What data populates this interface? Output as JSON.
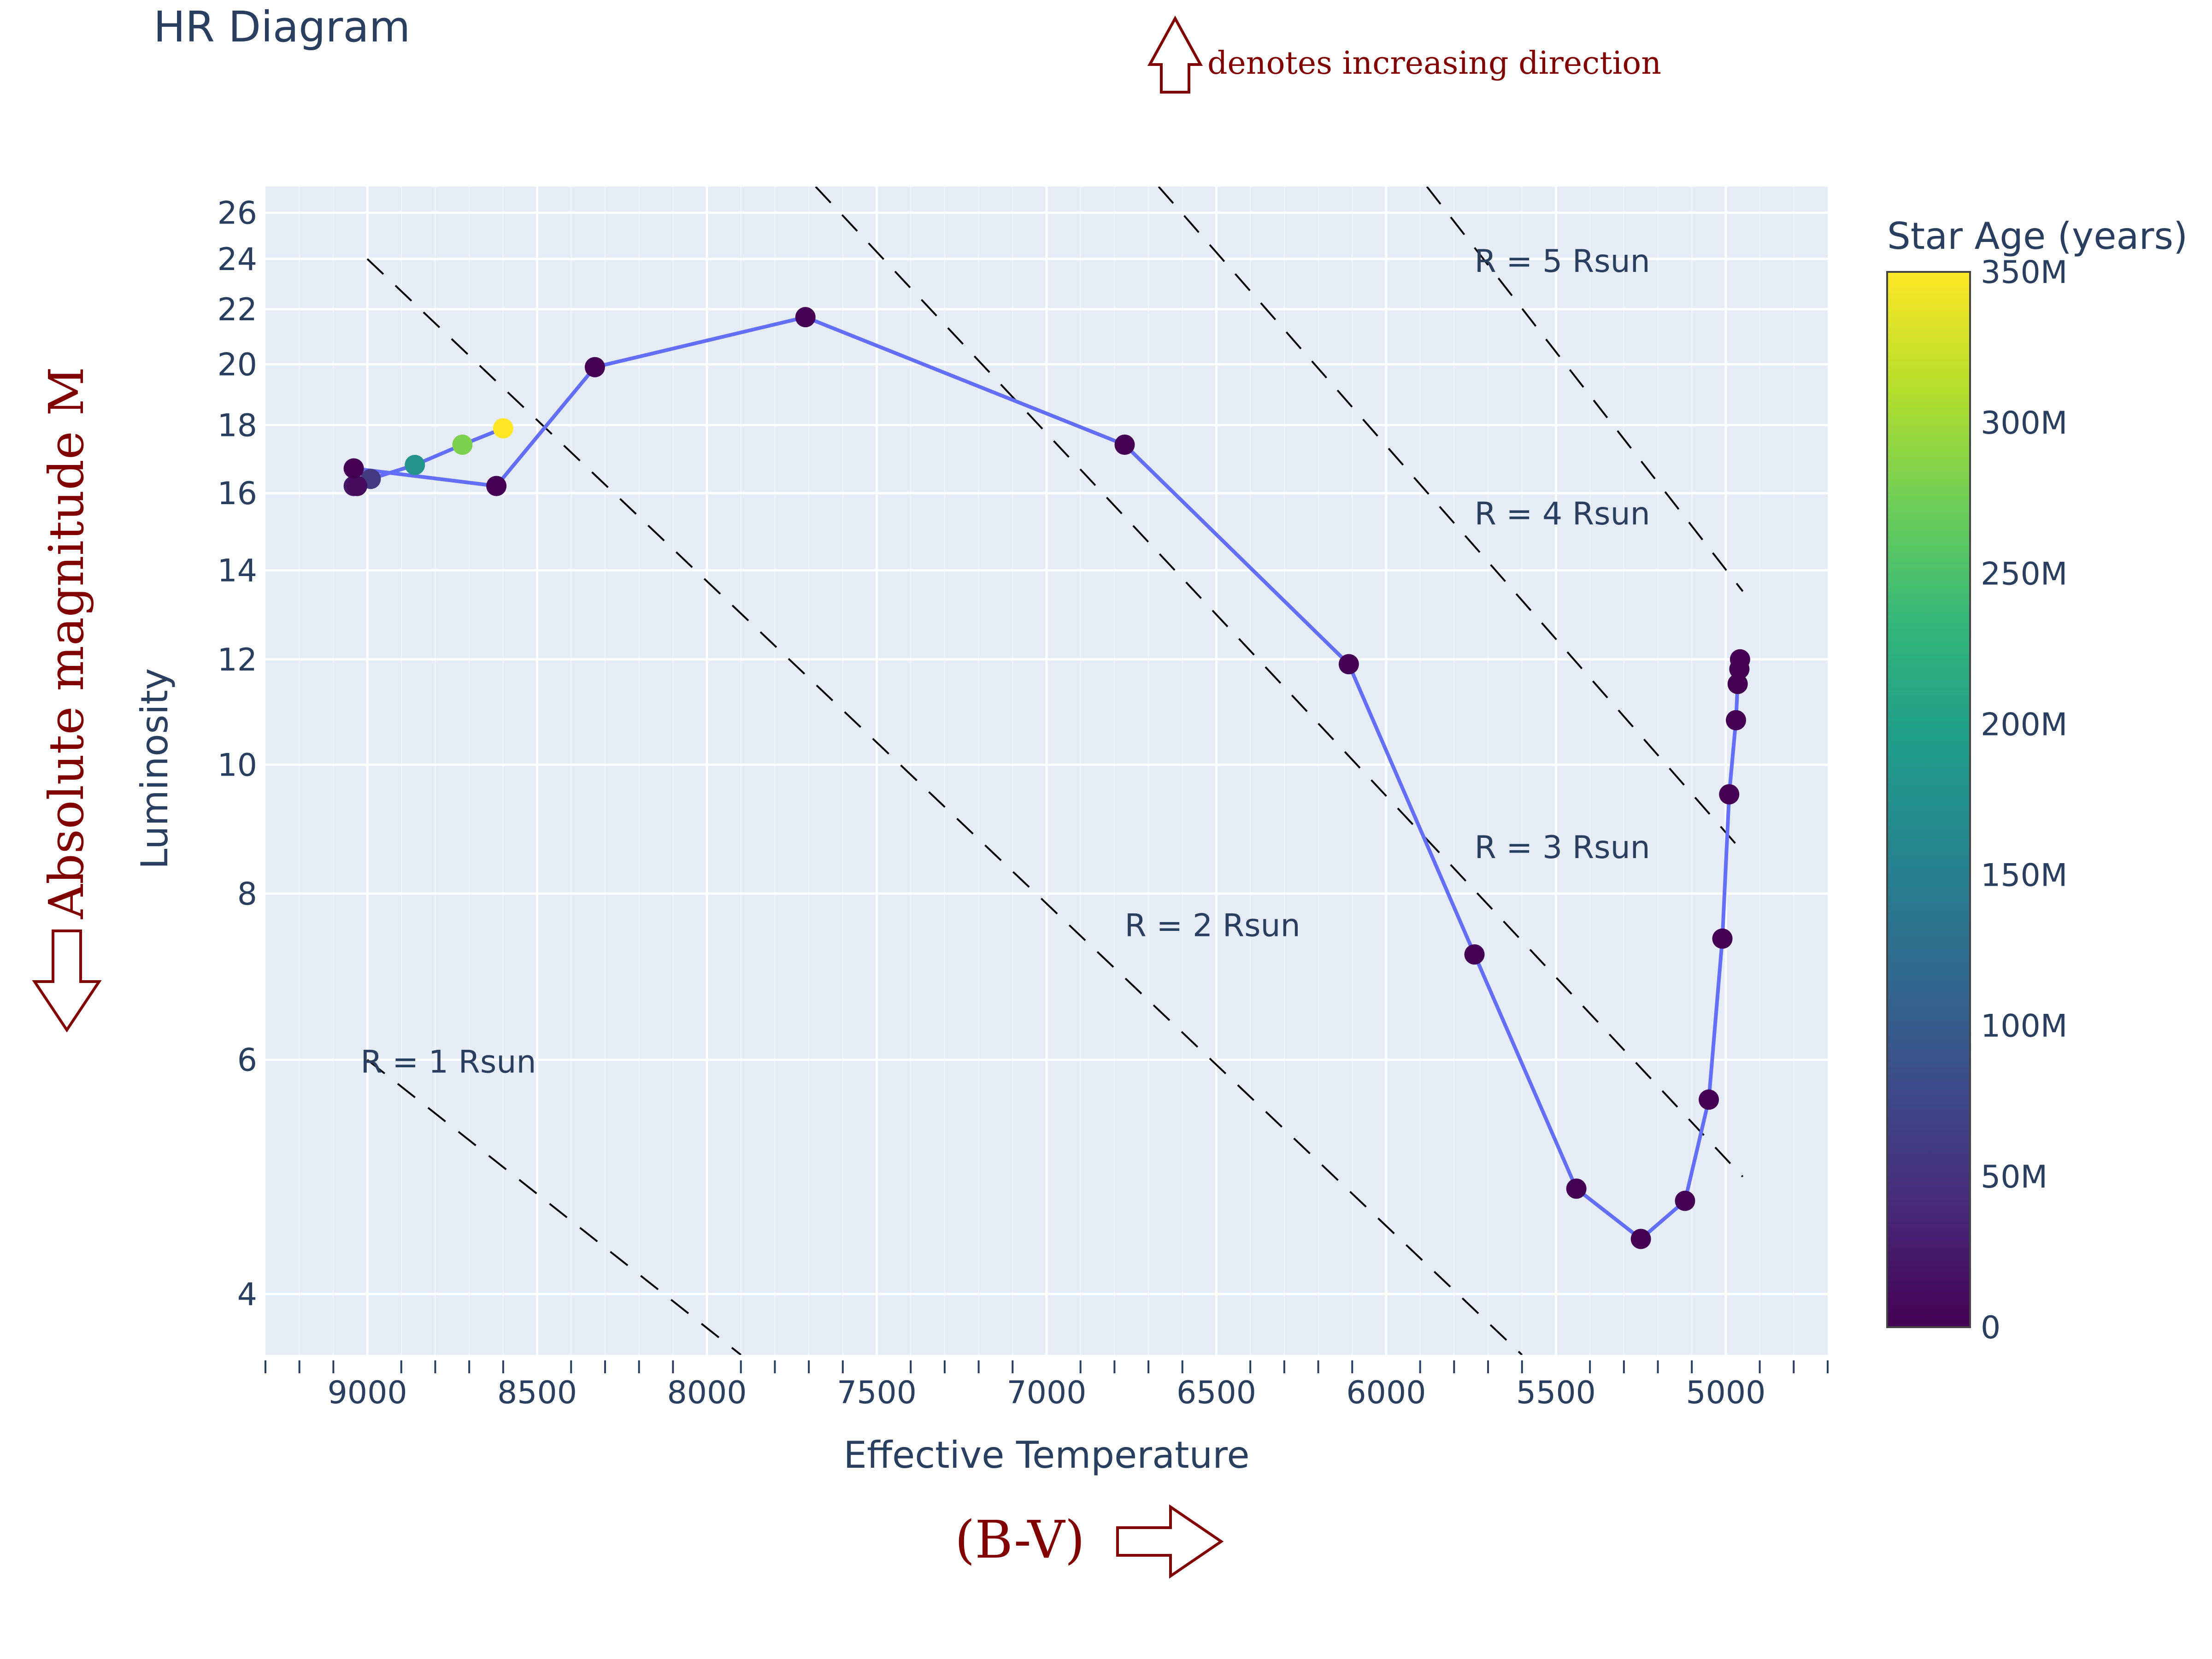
{
  "chart_data": {
    "type": "scatter",
    "title": "HR Diagram",
    "xlabel": "Effective Temperature",
    "ylabel": "Luminosity",
    "x_reversed": true,
    "xlim": [
      9300,
      4700
    ],
    "ylim": [
      3.6,
      27.2
    ],
    "y_scale": "log",
    "grid": true,
    "x_ticks": [
      9000,
      8500,
      8000,
      7500,
      7000,
      6500,
      6000,
      5500,
      5000
    ],
    "x_tick_labels": [
      "9000",
      "8500",
      "8000",
      "7500",
      "7000",
      "6500",
      "6000",
      "5500",
      "5000"
    ],
    "y_ticks": [
      4,
      6,
      8,
      10,
      12,
      14,
      16,
      18,
      20,
      22,
      24,
      26
    ],
    "y_tick_labels": [
      "4",
      "6",
      "8",
      "10",
      "12",
      "14",
      "16",
      "18",
      "20",
      "22",
      "24",
      "26"
    ],
    "line_color": "#636efa",
    "series": [
      {
        "x": [
          8600,
          8720,
          8860,
          8990,
          9040,
          9030,
          9040,
          8620,
          8330,
          7710,
          6770,
          6110,
          5740,
          5440,
          5250,
          5120,
          5050,
          5010,
          4990,
          4970,
          4965,
          4960,
          4958
        ],
        "y": [
          17.9,
          17.4,
          16.8,
          16.4,
          16.2,
          16.2,
          16.7,
          16.2,
          19.9,
          21.7,
          17.4,
          11.9,
          7.2,
          4.8,
          4.4,
          4.7,
          5.6,
          7.4,
          9.5,
          10.8,
          11.5,
          11.8,
          12.0
        ],
        "age_myr": [
          350,
          280,
          180,
          60,
          20,
          10,
          0,
          0,
          0,
          0,
          0,
          0,
          0,
          0,
          0,
          0,
          0,
          0,
          0,
          0,
          0,
          0,
          0
        ]
      }
    ],
    "colorbar": {
      "title": "Star Age (years)",
      "tick_values": [
        0,
        50,
        100,
        150,
        200,
        250,
        300,
        350
      ],
      "tick_labels": [
        "0",
        "50M",
        "100M",
        "150M",
        "200M",
        "250M",
        "300M",
        "350M"
      ],
      "colorscale": [
        "#440154",
        "#482878",
        "#3e4989",
        "#31688e",
        "#26828e",
        "#1f9e89",
        "#35b779",
        "#6ece58",
        "#b5de2b",
        "#fde725"
      ]
    },
    "radius_lines": [
      {
        "label": "R = 1 Rsun",
        "x_start": 9000,
        "y_start": 6.0,
        "x_end": 7900,
        "y_end": 3.6
      },
      {
        "label": "R = 2 Rsun",
        "x_start": 9000,
        "y_start": 24.0,
        "x_end": 5600,
        "y_end": 3.6
      },
      {
        "label": "R = 3 Rsun",
        "x_start": 7680,
        "y_start": 27.2,
        "x_end": 4950,
        "y_end": 4.9
      },
      {
        "label": "R = 4 Rsun",
        "x_start": 6670,
        "y_start": 27.2,
        "x_end": 4950,
        "y_end": 8.6
      },
      {
        "label": "R = 5 Rsun",
        "x_start": 5880,
        "y_start": 27.2,
        "x_end": 4950,
        "y_end": 13.5
      }
    ],
    "radius_labels": [
      {
        "text": "R = 1 Rsun",
        "x": 9020,
        "y": 6.0
      },
      {
        "text": "R = 2 Rsun",
        "x": 6770,
        "y": 7.6
      },
      {
        "text": "R = 3 Rsun",
        "x": 5740,
        "y": 8.7
      },
      {
        "text": "R = 4 Rsun",
        "x": 5740,
        "y": 15.5
      },
      {
        "text": "R = 5 Rsun",
        "x": 5740,
        "y": 24.0
      }
    ]
  },
  "annotations": {
    "legend_note": "denotes increasing direction",
    "magnitude_label": "Absolute magnitude M",
    "color_index_label": "(B-V)"
  },
  "colors": {
    "plot_bg": "#e5ecf6",
    "text": "#2a3f5f",
    "accent": "#800000",
    "line": "#636efa"
  }
}
